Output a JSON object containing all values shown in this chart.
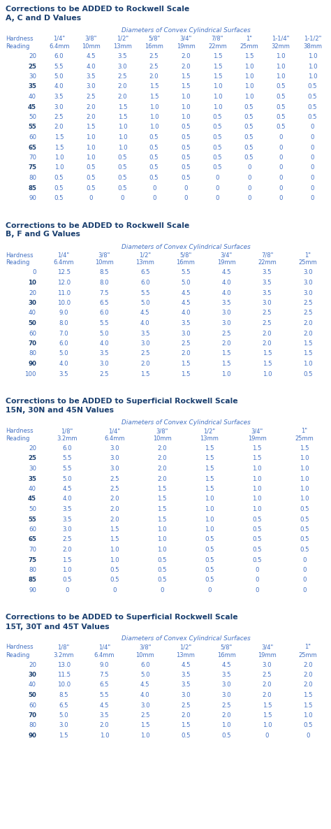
{
  "tables": [
    {
      "title_line1": "Corrections to be ADDED to Rockwell Scale",
      "title_line2": "A, C and D Values",
      "subtitle": "Diameters of Convex Cylindrical Surfaces",
      "col_header_top": [
        "1/4\"",
        "3/8\"",
        "1/2\"",
        "5/8\"",
        "3/4\"",
        "7/8\"",
        "1\"",
        "1-1/4\"",
        "1-1/2\""
      ],
      "col_header_bot": [
        "6.4mm",
        "10mm",
        "13mm",
        "16mm",
        "19mm",
        "22mm",
        "25mm",
        "32mm",
        "38mm"
      ],
      "row_labels": [
        "20",
        "25",
        "30",
        "35",
        "40",
        "45",
        "50",
        "55",
        "60",
        "65",
        "70",
        "75",
        "80",
        "85",
        "90"
      ],
      "data": [
        [
          6.0,
          4.5,
          3.5,
          2.5,
          2.0,
          1.5,
          1.5,
          1.0,
          1.0
        ],
        [
          5.5,
          4.0,
          3.0,
          2.5,
          2.0,
          1.5,
          1.0,
          1.0,
          1.0
        ],
        [
          5.0,
          3.5,
          2.5,
          2.0,
          1.5,
          1.5,
          1.0,
          1.0,
          1.0
        ],
        [
          4.0,
          3.0,
          2.0,
          1.5,
          1.5,
          1.0,
          1.0,
          0.5,
          0.5
        ],
        [
          3.5,
          2.5,
          2.0,
          1.5,
          1.0,
          1.0,
          1.0,
          0.5,
          0.5
        ],
        [
          3.0,
          2.0,
          1.5,
          1.0,
          1.0,
          1.0,
          0.5,
          0.5,
          0.5
        ],
        [
          2.5,
          2.0,
          1.5,
          1.0,
          1.0,
          0.5,
          0.5,
          0.5,
          0.5
        ],
        [
          2.0,
          1.5,
          1.0,
          1.0,
          0.5,
          0.5,
          0.5,
          0.5,
          0
        ],
        [
          1.5,
          1.0,
          1.0,
          0.5,
          0.5,
          0.5,
          0.5,
          0,
          0
        ],
        [
          1.5,
          1.0,
          1.0,
          0.5,
          0.5,
          0.5,
          0.5,
          0,
          0
        ],
        [
          1.0,
          1.0,
          0.5,
          0.5,
          0.5,
          0.5,
          0.5,
          0,
          0
        ],
        [
          1.0,
          0.5,
          0.5,
          0.5,
          0.5,
          0.5,
          0,
          0,
          0
        ],
        [
          0.5,
          0.5,
          0.5,
          0.5,
          0.5,
          0,
          0,
          0,
          0
        ],
        [
          0.5,
          0.5,
          0.5,
          0,
          0,
          0,
          0,
          0,
          0
        ],
        [
          0.5,
          0,
          0,
          0,
          0,
          0,
          0,
          0,
          0
        ]
      ],
      "bold_rows": [
        1,
        3,
        5,
        7,
        9,
        11,
        13
      ],
      "num_cols": 9
    },
    {
      "title_line1": "Corrections to be ADDED to Rockwell Scale",
      "title_line2": "B, F and G Values",
      "subtitle": "Diameters of Convex Cylindrical Surfaces",
      "col_header_top": [
        "1/4\"",
        "3/8\"",
        "1/2\"",
        "5/8\"",
        "3/4\"",
        "7/8\"",
        "1\""
      ],
      "col_header_bot": [
        "6.4mm",
        "10mm",
        "13mm",
        "16mm",
        "19mm",
        "22mm",
        "25mm"
      ],
      "row_labels": [
        "0",
        "10",
        "20",
        "30",
        "40",
        "50",
        "60",
        "70",
        "80",
        "90",
        "100"
      ],
      "data": [
        [
          12.5,
          8.5,
          6.5,
          5.5,
          4.5,
          3.5,
          3.0
        ],
        [
          12.0,
          8.0,
          6.0,
          5.0,
          4.0,
          3.5,
          3.0
        ],
        [
          11.0,
          7.5,
          5.5,
          4.5,
          4.0,
          3.5,
          3.0
        ],
        [
          10.0,
          6.5,
          5.0,
          4.5,
          3.5,
          3.0,
          2.5
        ],
        [
          9.0,
          6.0,
          4.5,
          4.0,
          3.0,
          2.5,
          2.5
        ],
        [
          8.0,
          5.5,
          4.0,
          3.5,
          3.0,
          2.5,
          2.0
        ],
        [
          7.0,
          5.0,
          3.5,
          3.0,
          2.5,
          2.0,
          2.0
        ],
        [
          6.0,
          4.0,
          3.0,
          2.5,
          2.0,
          2.0,
          1.5
        ],
        [
          5.0,
          3.5,
          2.5,
          2.0,
          1.5,
          1.5,
          1.5
        ],
        [
          4.0,
          3.0,
          2.0,
          1.5,
          1.5,
          1.5,
          1.0
        ],
        [
          3.5,
          2.5,
          1.5,
          1.5,
          1.0,
          1.0,
          0.5
        ]
      ],
      "bold_rows": [
        1,
        3,
        5,
        7,
        9
      ],
      "num_cols": 7
    },
    {
      "title_line1": "Corrections to be ADDED to Superficial Rockwell Scale",
      "title_line2": "15N, 30N and 45N Values",
      "subtitle": "Diameters of Convex Cylindrical Surfaces",
      "col_header_top": [
        "1/8\"",
        "1/4\"",
        "3/8\"",
        "1/2\"",
        "3/4\"",
        "1\""
      ],
      "col_header_bot": [
        "3.2mm",
        "6.4mm",
        "10mm",
        "13mm",
        "19mm",
        "25mm"
      ],
      "row_labels": [
        "20",
        "25",
        "30",
        "35",
        "40",
        "45",
        "50",
        "55",
        "60",
        "65",
        "70",
        "75",
        "80",
        "85",
        "90"
      ],
      "data": [
        [
          6.0,
          3.0,
          2.0,
          1.5,
          1.5,
          1.5
        ],
        [
          5.5,
          3.0,
          2.0,
          1.5,
          1.5,
          1.0
        ],
        [
          5.5,
          3.0,
          2.0,
          1.5,
          1.0,
          1.0
        ],
        [
          5.0,
          2.5,
          2.0,
          1.5,
          1.0,
          1.0
        ],
        [
          4.5,
          2.5,
          1.5,
          1.5,
          1.0,
          1.0
        ],
        [
          4.0,
          2.0,
          1.5,
          1.0,
          1.0,
          1.0
        ],
        [
          3.5,
          2.0,
          1.5,
          1.0,
          1.0,
          0.5
        ],
        [
          3.5,
          2.0,
          1.5,
          1.0,
          0.5,
          0.5
        ],
        [
          3.0,
          1.5,
          1.0,
          1.0,
          0.5,
          0.5
        ],
        [
          2.5,
          1.5,
          1.0,
          0.5,
          0.5,
          0.5
        ],
        [
          2.0,
          1.0,
          1.0,
          0.5,
          0.5,
          0.5
        ],
        [
          1.5,
          1.0,
          0.5,
          0.5,
          0.5,
          0
        ],
        [
          1.0,
          0.5,
          0.5,
          0.5,
          0,
          0
        ],
        [
          0.5,
          0.5,
          0.5,
          0.5,
          0,
          0
        ],
        [
          0,
          0,
          0,
          0,
          0,
          0
        ]
      ],
      "bold_rows": [
        1,
        3,
        5,
        7,
        9,
        11,
        13
      ],
      "num_cols": 6
    },
    {
      "title_line1": "Corrections to be ADDED to Superficial Rockwell Scale",
      "title_line2": "15T, 30T and 45T Values",
      "subtitle": "Diameters of Convex Cylindrical Surfaces",
      "col_header_top": [
        "1/8\"",
        "1/4\"",
        "3/8\"",
        "1/2\"",
        "5/8\"",
        "3/4\"",
        "1\""
      ],
      "col_header_bot": [
        "3.2mm",
        "6.4mm",
        "10mm",
        "13mm",
        "16mm",
        "19mm",
        "25mm"
      ],
      "row_labels": [
        "20",
        "30",
        "40",
        "50",
        "60",
        "70",
        "80",
        "90"
      ],
      "data": [
        [
          13.0,
          9.0,
          6.0,
          4.5,
          4.5,
          3.0,
          2.0
        ],
        [
          11.5,
          7.5,
          5.0,
          3.5,
          3.5,
          2.5,
          2.0
        ],
        [
          10.0,
          6.5,
          4.5,
          3.5,
          3.0,
          2.0,
          2.0
        ],
        [
          8.5,
          5.5,
          4.0,
          3.0,
          3.0,
          2.0,
          1.5
        ],
        [
          6.5,
          4.5,
          3.0,
          2.5,
          2.5,
          1.5,
          1.5
        ],
        [
          5.0,
          3.5,
          2.5,
          2.0,
          2.0,
          1.5,
          1.0
        ],
        [
          3.0,
          2.0,
          1.5,
          1.5,
          1.0,
          1.0,
          0.5
        ],
        [
          1.5,
          1.0,
          1.0,
          0.5,
          0.5,
          0,
          0
        ]
      ],
      "bold_rows": [
        1,
        3,
        5,
        7
      ],
      "num_cols": 7
    }
  ],
  "bg_color": "#ffffff",
  "title_color": "#1a3f6f",
  "subtitle_color": "#4472c4",
  "header_color": "#4472c4",
  "data_color": "#4472c4",
  "row_bold_color": "#1a3f6f",
  "row_normal_color": "#4472c4"
}
